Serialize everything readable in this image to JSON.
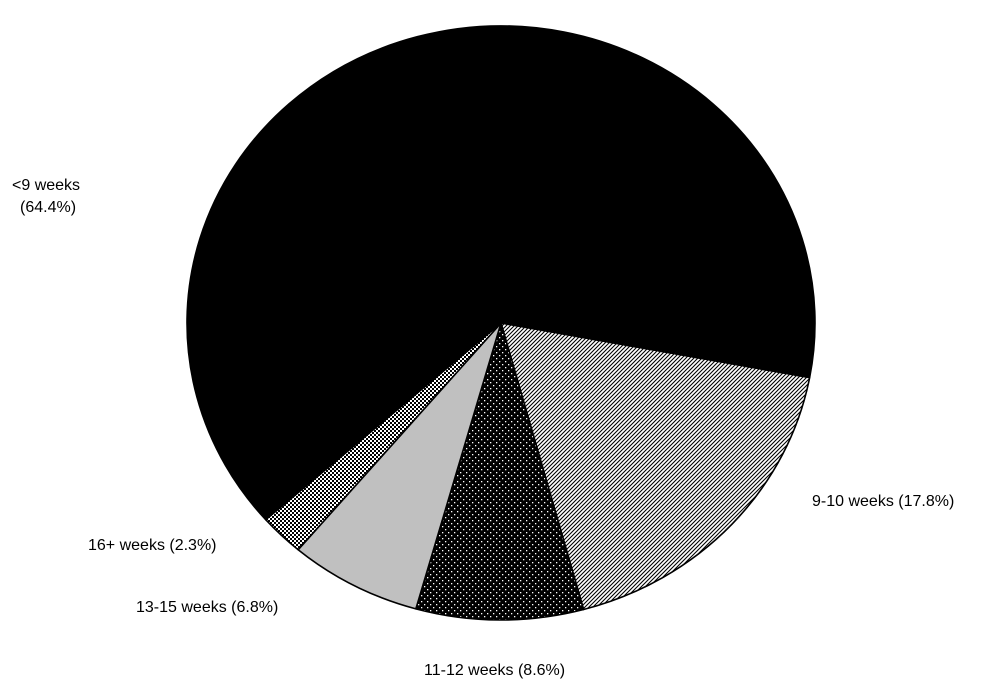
{
  "chart_data": {
    "type": "pie",
    "title": "",
    "slices": [
      {
        "label": "<9 weeks",
        "value": 64.4,
        "label_text": [
          "<9 weeks",
          "(64.4%)"
        ],
        "pattern": "solid"
      },
      {
        "label": "9-10 weeks",
        "value": 17.8,
        "label_text": [
          "9-10 weeks (17.8%)"
        ],
        "pattern": "diagonal"
      },
      {
        "label": "11-12 weeks",
        "value": 8.6,
        "label_text": [
          "11-12 weeks (8.6%)"
        ],
        "pattern": "dots"
      },
      {
        "label": "13-15 weeks",
        "value": 6.8,
        "label_text": [
          "13-15 weeks (6.8%)"
        ],
        "pattern": "gray"
      },
      {
        "label": "16+ weeks",
        "value": 2.3,
        "label_text": [
          "16+ weeks (2.3%)"
        ],
        "pattern": "checker"
      }
    ],
    "colors": {
      "solid": "#000000",
      "gray": "#c0c0c0",
      "outline": "#000000"
    }
  }
}
